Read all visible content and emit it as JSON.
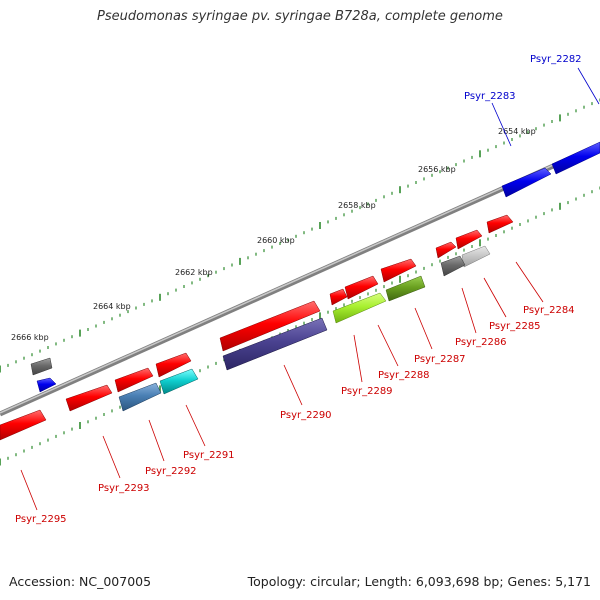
{
  "title": "Pseudomonas syringae pv. syringae B728a, complete genome",
  "footer": {
    "accession": "Accession: NC_007005",
    "info": "Topology: circular; Length: 6,093,698 bp; Genes: 5,171"
  },
  "colors": {
    "backbone": "#8a8a8a",
    "forward_gene": "#ff0000",
    "tick": "#2e8b2e",
    "label_red": "#cc0000",
    "label_blue": "#0000cc"
  },
  "kbp_labels": [
    "2666 kbp",
    "2664 kbp",
    "2662 kbp",
    "2660 kbp",
    "2658 kbp",
    "2656 kbp",
    "2654 kbp"
  ],
  "gene_labels": [
    {
      "name": "Psyr_2282",
      "color": "blue"
    },
    {
      "name": "Psyr_2283",
      "color": "blue"
    },
    {
      "name": "Psyr_2284",
      "color": "red"
    },
    {
      "name": "Psyr_2285",
      "color": "red"
    },
    {
      "name": "Psyr_2286",
      "color": "red"
    },
    {
      "name": "Psyr_2287",
      "color": "red"
    },
    {
      "name": "Psyr_2288",
      "color": "red"
    },
    {
      "name": "Psyr_2289",
      "color": "red"
    },
    {
      "name": "Psyr_2290",
      "color": "red"
    },
    {
      "name": "Psyr_2291",
      "color": "red"
    },
    {
      "name": "Psyr_2292",
      "color": "red"
    },
    {
      "name": "Psyr_2293",
      "color": "red"
    },
    {
      "name": "Psyr_2295",
      "color": "red"
    }
  ]
}
